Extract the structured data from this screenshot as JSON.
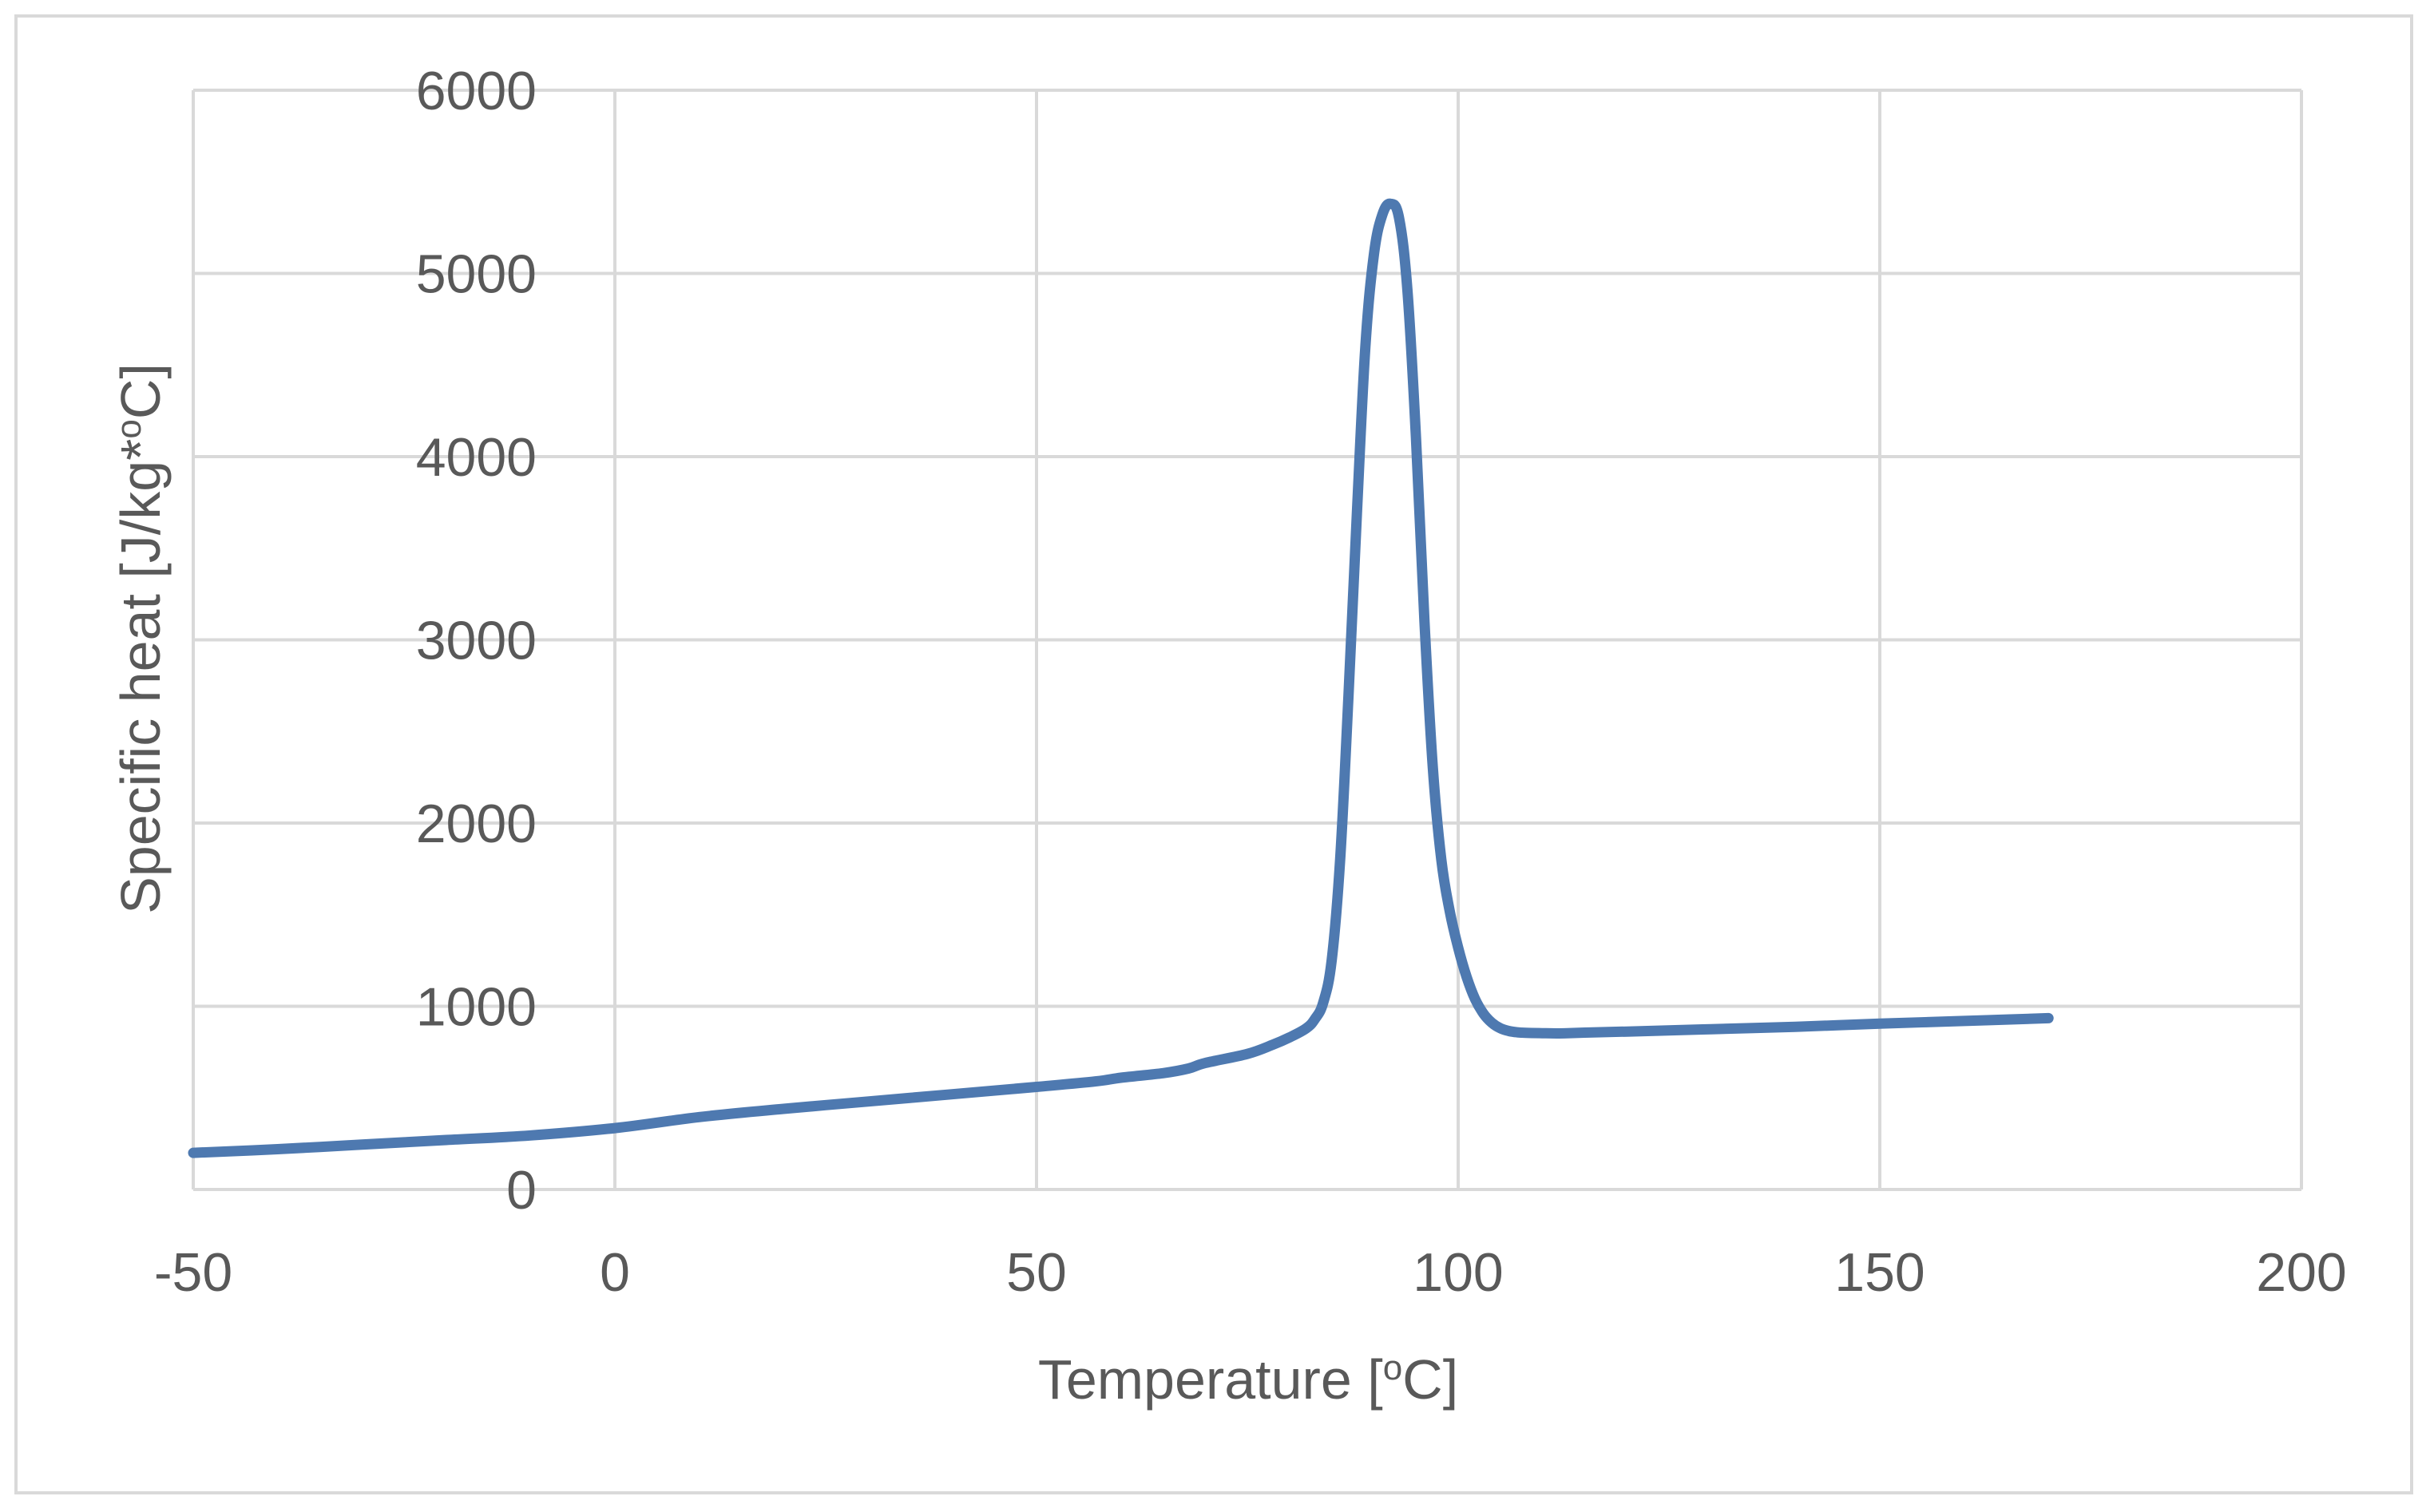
{
  "chart_data": {
    "type": "line",
    "title": "",
    "xlabel": "Temperature [°C]",
    "xlabel_parts": {
      "before": "Temperature [",
      "sup": "o",
      "after": "C]"
    },
    "ylabel": "Specific heat [J/kg*°C]",
    "ylabel_parts": {
      "before": "Specific heat [J/kg*",
      "sup": "o",
      "after": "C]"
    },
    "xlim": [
      -50,
      200
    ],
    "ylim": [
      0,
      6000
    ],
    "xticks": [
      -50,
      0,
      50,
      100,
      150,
      200
    ],
    "xtick_labels": [
      "-50",
      "0",
      "50",
      "100",
      "150",
      "200"
    ],
    "yticks": [
      0,
      1000,
      2000,
      3000,
      4000,
      5000,
      6000
    ],
    "ytick_labels": [
      "0",
      "1000",
      "2000",
      "3000",
      "4000",
      "5000",
      "6000"
    ],
    "grid": true,
    "series_color": "#4e79b0",
    "series": [
      {
        "name": "Specific heat",
        "x": [
          -50,
          -40,
          -30,
          -20,
          -10,
          0,
          10,
          20,
          30,
          40,
          50,
          57,
          60,
          65,
          68,
          70,
          75,
          78,
          80,
          82,
          83,
          84,
          85,
          86,
          87,
          88,
          89,
          90,
          91,
          92,
          93,
          94,
          95,
          96,
          97,
          98,
          99,
          100,
          101,
          102,
          103,
          104,
          105,
          106,
          107,
          108,
          110,
          112,
          115,
          120,
          130,
          140,
          150,
          160,
          170
        ],
        "y": [
          200,
          220,
          245,
          270,
          295,
          335,
          395,
          440,
          480,
          520,
          560,
          590,
          610,
          635,
          660,
          690,
          740,
          790,
          830,
          880,
          930,
          1020,
          1250,
          1800,
          2700,
          3700,
          4600,
          5100,
          5320,
          5380,
          5300,
          4900,
          4100,
          3100,
          2300,
          1800,
          1520,
          1320,
          1160,
          1040,
          960,
          910,
          880,
          865,
          858,
          855,
          853,
          852,
          856,
          862,
          875,
          888,
          905,
          920,
          935
        ]
      }
    ]
  }
}
